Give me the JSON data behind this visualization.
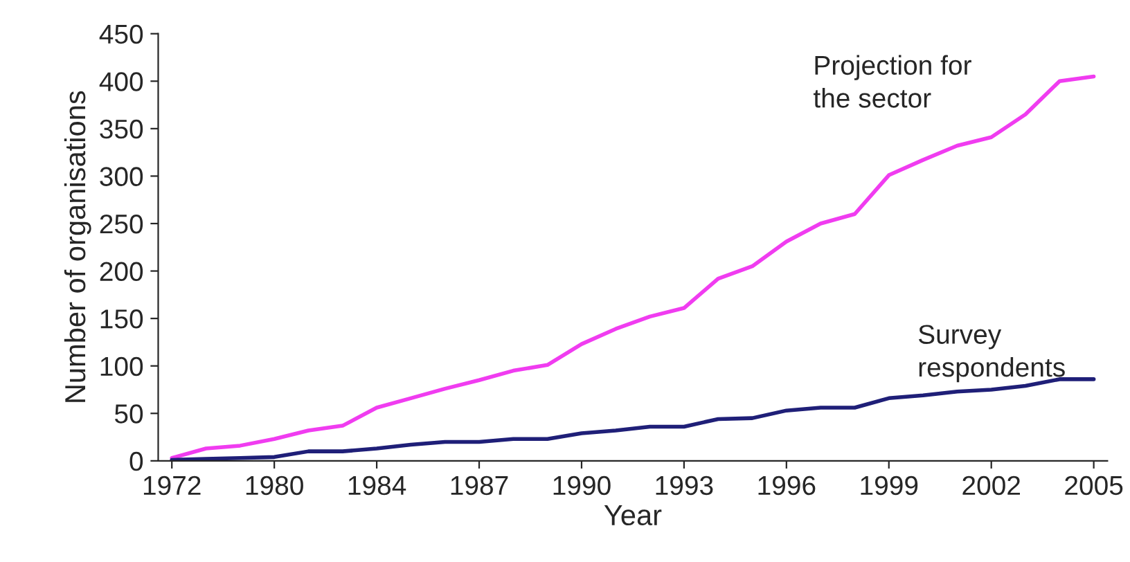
{
  "chart_data": {
    "type": "line",
    "xlabel": "Year",
    "ylabel": "Number of organisations",
    "categories": [
      "1972",
      null,
      null,
      "1980",
      null,
      null,
      "1984",
      null,
      null,
      "1987",
      null,
      null,
      "1990",
      null,
      null,
      "1993",
      null,
      null,
      "1996",
      null,
      null,
      "1999",
      null,
      null,
      "2002",
      null,
      null,
      "2005"
    ],
    "series": [
      {
        "color": "#f03cf0",
        "values": [
          3,
          13,
          16,
          23,
          32,
          37,
          56,
          66,
          76,
          85,
          95,
          101,
          123,
          139,
          152,
          161,
          192,
          205,
          231,
          250,
          260,
          301,
          317,
          332,
          341,
          365,
          400,
          405
        ]
      },
      {
        "color": "#1f1f78",
        "values": [
          1,
          2,
          3,
          4,
          10,
          10,
          13,
          17,
          20,
          20,
          23,
          23,
          29,
          32,
          36,
          36,
          44,
          45,
          53,
          56,
          56,
          66,
          69,
          73,
          75,
          79,
          86,
          86
        ]
      }
    ],
    "ylim": [
      0,
      450
    ],
    "yticks": [
      0,
      50,
      100,
      150,
      200,
      250,
      300,
      350,
      400,
      450
    ],
    "annotations": [
      "Projection for\nthe sector",
      "Survey\nrespondents"
    ],
    "grid": false,
    "legend": false,
    "marker": "none",
    "line_style": "solid"
  }
}
